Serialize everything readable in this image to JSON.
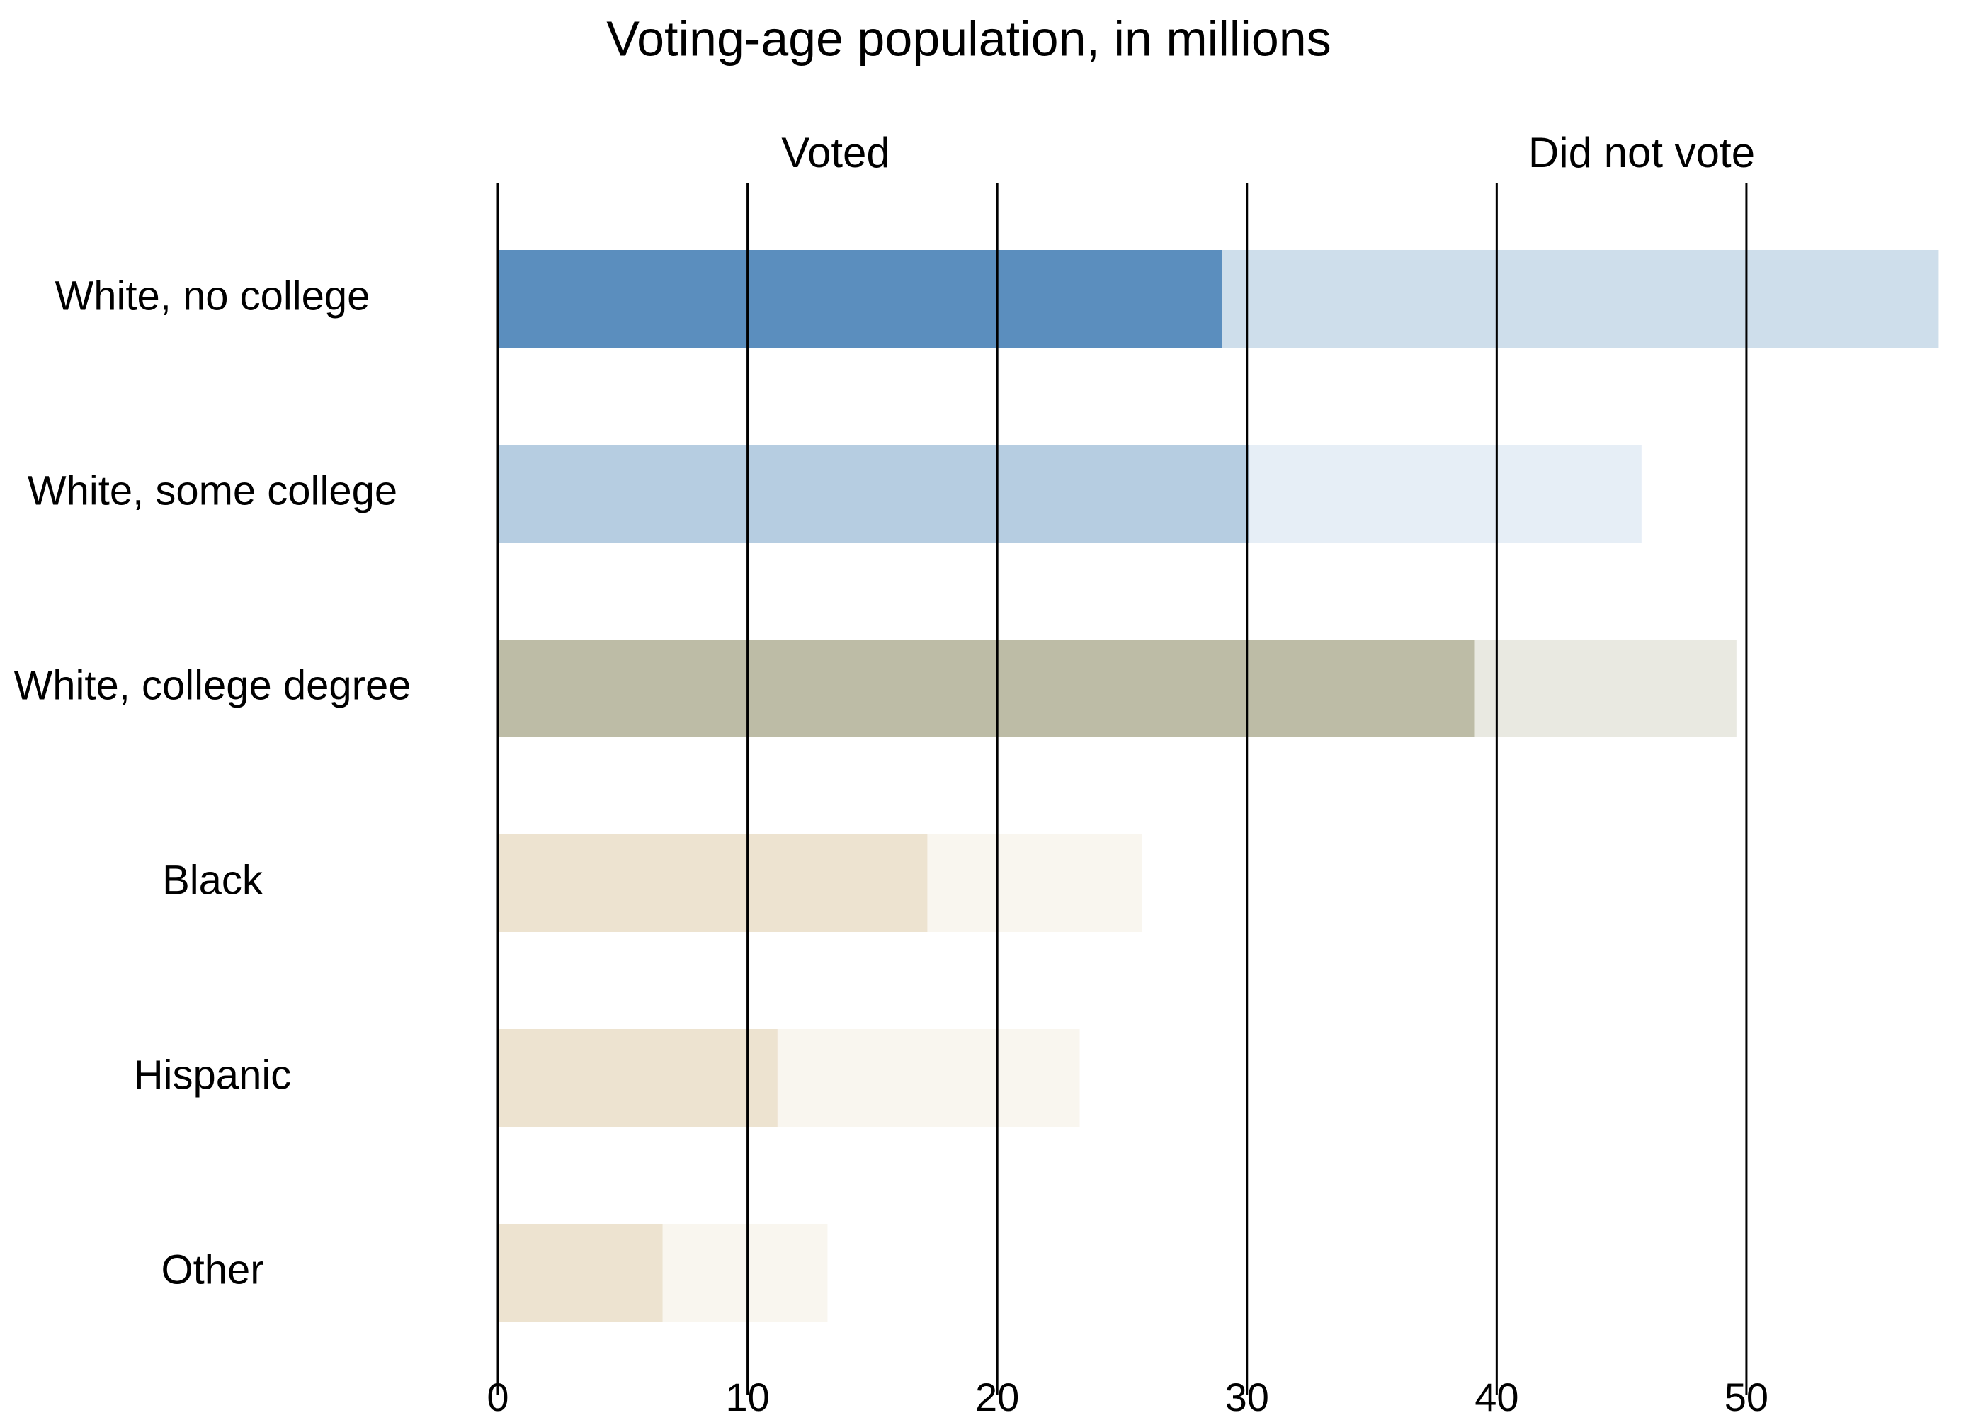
{
  "chart_data": {
    "type": "bar",
    "orientation": "horizontal",
    "stacked": true,
    "title": "Voting-age population, in millions",
    "categories": [
      "White, no college",
      "White, some college",
      "White, college degree",
      "Black",
      "Hispanic",
      "Other"
    ],
    "series": [
      {
        "name": "Voted",
        "values": [
          29.0,
          30.1,
          39.1,
          17.2,
          11.2,
          6.6
        ]
      },
      {
        "name": "Did not vote",
        "values": [
          28.7,
          15.7,
          10.5,
          8.6,
          12.1,
          6.6
        ]
      }
    ],
    "xlim": [
      0,
      58
    ],
    "xticks": [
      0,
      10,
      20,
      30,
      40,
      50
    ],
    "grid": true,
    "colors": {
      "voted": [
        "#5b8ebe",
        "#b6cde1",
        "#bdbca6",
        "#ede3d0",
        "#ede3d0",
        "#ede3d0"
      ],
      "did_not_vote": [
        "#cedeeb",
        "#e6eef6",
        "#e9e9e1",
        "#f9f6ef",
        "#f9f6ef",
        "#f9f6ef"
      ]
    }
  }
}
